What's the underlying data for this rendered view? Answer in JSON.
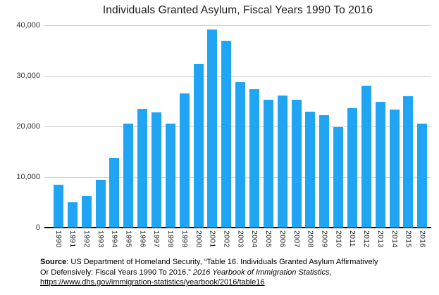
{
  "title": "Individuals Granted Asylum, Fiscal Years 1990 To 2016",
  "chart_data": {
    "type": "bar",
    "title": "Individuals Granted Asylum, Fiscal Years 1990 To 2016",
    "categories": [
      "1990",
      "1991",
      "1992",
      "1993",
      "1994",
      "1995",
      "1996",
      "1997",
      "1998",
      "1999",
      "2000",
      "2001",
      "2002",
      "2003",
      "2004",
      "2005",
      "2006",
      "2007",
      "2008",
      "2009",
      "2010",
      "2011",
      "2012",
      "2013",
      "2014",
      "2015",
      "2016"
    ],
    "values": [
      8500,
      5000,
      6300,
      9500,
      13700,
      20600,
      23500,
      22800,
      20500,
      26500,
      32400,
      39100,
      36900,
      28700,
      27300,
      25300,
      26100,
      25300,
      22900,
      22200,
      19800,
      23600,
      28000,
      24900,
      23300,
      26000,
      20500
    ],
    "xlabel": "",
    "ylabel": "",
    "ylim": [
      0,
      40000
    ],
    "yticks": [
      {
        "value": 0,
        "label": "0"
      },
      {
        "value": 10000,
        "label": "10,000"
      },
      {
        "value": 20000,
        "label": "20,000"
      },
      {
        "value": 30000,
        "label": "30,000"
      },
      {
        "value": 40000,
        "label": "40,000"
      }
    ],
    "grid": true,
    "legend": "none",
    "bar_color": "#1fa5f4"
  },
  "source": {
    "line1_label": "Source",
    "line1_text": ": US Department of Homeland Security, “Table 16. Individuals Granted Asylum Affirmatively",
    "line2_text": "Or Defensively: Fiscal Years 1990 To 2016,” ",
    "line2_italic": "2016 Yearbook of Immigration Statistics,",
    "line3_link": "https://www.dhs.gov/immigration-statistics/yearbook/2016/table16"
  },
  "colors": {
    "bar": "#1fa5f4",
    "gridline": "#cccccc",
    "axis": "#000000",
    "text": "#1a1a1a"
  }
}
